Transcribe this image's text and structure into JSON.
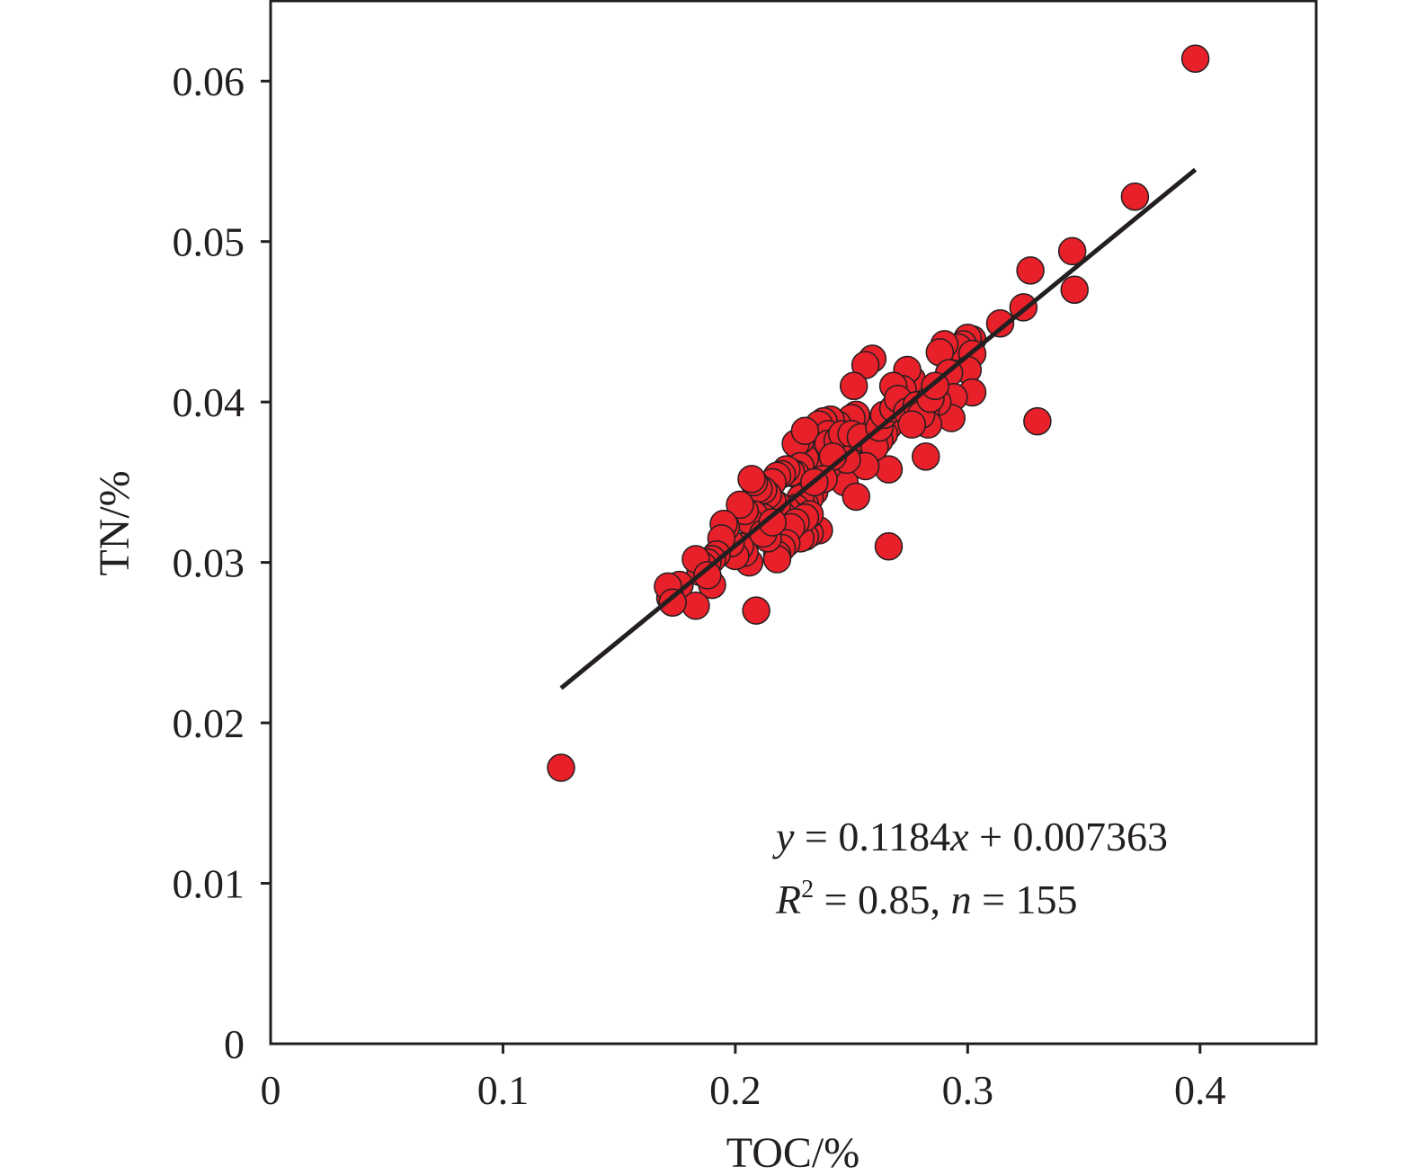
{
  "chart_data": {
    "type": "scatter",
    "title": "",
    "xlabel": "TOC/%",
    "ylabel": "TN/%",
    "xlim": [
      0,
      0.45
    ],
    "ylim": [
      0,
      0.065
    ],
    "x_ticks": [
      0,
      0.1,
      0.2,
      0.3,
      0.4
    ],
    "x_tick_labels": [
      "0",
      "0.1",
      "0.2",
      "0.3",
      "0.4"
    ],
    "y_ticks": [
      0,
      0.01,
      0.02,
      0.03,
      0.04,
      0.05,
      0.06
    ],
    "y_tick_labels": [
      "0",
      "0.01",
      "0.02",
      "0.03",
      "0.04",
      "0.05",
      "0.06"
    ],
    "grid": false,
    "legend": "none",
    "colors": {
      "marker": "#e8202a",
      "marker_edge": "#231f20",
      "fit_line": "#231f20",
      "axis": "#231f20"
    },
    "fit_line": {
      "slope": 0.1184,
      "intercept": 0.007363,
      "x_range": [
        0.125,
        0.398
      ]
    },
    "annotation": {
      "eq_y": "y",
      "eq_rest": " = 0.1184",
      "eq_x": "x",
      "eq_tail": " + 0.007363",
      "r_letter": "R",
      "r_sup": "2",
      "r_rest": " = 0.85, ",
      "n_letter": "n",
      "n_rest": " = 155"
    },
    "points": [
      [
        0.398,
        0.0614
      ],
      [
        0.372,
        0.0528
      ],
      [
        0.345,
        0.0494
      ],
      [
        0.346,
        0.047
      ],
      [
        0.327,
        0.0482
      ],
      [
        0.324,
        0.0459
      ],
      [
        0.314,
        0.0449
      ],
      [
        0.33,
        0.0388
      ],
      [
        0.302,
        0.0439
      ],
      [
        0.3,
        0.044
      ],
      [
        0.298,
        0.0436
      ],
      [
        0.296,
        0.0434
      ],
      [
        0.29,
        0.0436
      ],
      [
        0.288,
        0.0431
      ],
      [
        0.302,
        0.043
      ],
      [
        0.3,
        0.042
      ],
      [
        0.292,
        0.0418
      ],
      [
        0.302,
        0.0406
      ],
      [
        0.294,
        0.0403
      ],
      [
        0.293,
        0.039
      ],
      [
        0.287,
        0.04
      ],
      [
        0.282,
        0.0395
      ],
      [
        0.283,
        0.0386
      ],
      [
        0.282,
        0.0366
      ],
      [
        0.278,
        0.0405
      ],
      [
        0.276,
        0.0414
      ],
      [
        0.274,
        0.042
      ],
      [
        0.272,
        0.0408
      ],
      [
        0.27,
        0.04
      ],
      [
        0.268,
        0.041
      ],
      [
        0.272,
        0.0395
      ],
      [
        0.269,
        0.039
      ],
      [
        0.266,
        0.0385
      ],
      [
        0.264,
        0.038
      ],
      [
        0.262,
        0.0376
      ],
      [
        0.266,
        0.0358
      ],
      [
        0.266,
        0.031
      ],
      [
        0.259,
        0.0427
      ],
      [
        0.256,
        0.0423
      ],
      [
        0.251,
        0.041
      ],
      [
        0.258,
        0.0385
      ],
      [
        0.255,
        0.0383
      ],
      [
        0.252,
        0.0392
      ],
      [
        0.25,
        0.039
      ],
      [
        0.256,
        0.037
      ],
      [
        0.253,
        0.0366
      ],
      [
        0.25,
        0.0374
      ],
      [
        0.248,
        0.037
      ],
      [
        0.246,
        0.0368
      ],
      [
        0.247,
        0.036
      ],
      [
        0.245,
        0.0355
      ],
      [
        0.247,
        0.035
      ],
      [
        0.252,
        0.0341
      ],
      [
        0.244,
        0.0386
      ],
      [
        0.241,
        0.0389
      ],
      [
        0.238,
        0.0388
      ],
      [
        0.236,
        0.0386
      ],
      [
        0.24,
        0.038
      ],
      [
        0.238,
        0.0372
      ],
      [
        0.236,
        0.037
      ],
      [
        0.234,
        0.0366
      ],
      [
        0.24,
        0.036
      ],
      [
        0.236,
        0.0358
      ],
      [
        0.232,
        0.0362
      ],
      [
        0.23,
        0.0365
      ],
      [
        0.228,
        0.0376
      ],
      [
        0.226,
        0.0374
      ],
      [
        0.23,
        0.0382
      ],
      [
        0.228,
        0.036
      ],
      [
        0.226,
        0.0355
      ],
      [
        0.224,
        0.0356
      ],
      [
        0.222,
        0.0358
      ],
      [
        0.22,
        0.0355
      ],
      [
        0.218,
        0.0354
      ],
      [
        0.216,
        0.035
      ],
      [
        0.234,
        0.0344
      ],
      [
        0.232,
        0.034
      ],
      [
        0.23,
        0.0336
      ],
      [
        0.228,
        0.034
      ],
      [
        0.226,
        0.0334
      ],
      [
        0.224,
        0.033
      ],
      [
        0.222,
        0.0333
      ],
      [
        0.22,
        0.033
      ],
      [
        0.218,
        0.0336
      ],
      [
        0.216,
        0.0338
      ],
      [
        0.214,
        0.0342
      ],
      [
        0.212,
        0.0345
      ],
      [
        0.21,
        0.0346
      ],
      [
        0.208,
        0.035
      ],
      [
        0.207,
        0.0352
      ],
      [
        0.236,
        0.032
      ],
      [
        0.232,
        0.0318
      ],
      [
        0.23,
        0.0316
      ],
      [
        0.228,
        0.0315
      ],
      [
        0.232,
        0.033
      ],
      [
        0.23,
        0.0328
      ],
      [
        0.226,
        0.0325
      ],
      [
        0.224,
        0.0322
      ],
      [
        0.222,
        0.0312
      ],
      [
        0.22,
        0.0309
      ],
      [
        0.218,
        0.0305
      ],
      [
        0.218,
        0.0302
      ],
      [
        0.214,
        0.0315
      ],
      [
        0.212,
        0.0328
      ],
      [
        0.21,
        0.0325
      ],
      [
        0.208,
        0.033
      ],
      [
        0.206,
        0.0326
      ],
      [
        0.204,
        0.0332
      ],
      [
        0.202,
        0.0336
      ],
      [
        0.206,
        0.03
      ],
      [
        0.204,
        0.0306
      ],
      [
        0.202,
        0.031
      ],
      [
        0.2,
        0.0304
      ],
      [
        0.198,
        0.0312
      ],
      [
        0.196,
        0.0322
      ],
      [
        0.195,
        0.0324
      ],
      [
        0.194,
        0.0315
      ],
      [
        0.192,
        0.0305
      ],
      [
        0.19,
        0.0302
      ],
      [
        0.188,
        0.03
      ],
      [
        0.186,
        0.0298
      ],
      [
        0.185,
        0.0294
      ],
      [
        0.183,
        0.0302
      ],
      [
        0.19,
        0.0286
      ],
      [
        0.188,
        0.0292
      ],
      [
        0.176,
        0.0286
      ],
      [
        0.172,
        0.0278
      ],
      [
        0.183,
        0.0273
      ],
      [
        0.171,
        0.0285
      ],
      [
        0.173,
        0.0275
      ],
      [
        0.209,
        0.027
      ],
      [
        0.125,
        0.0172
      ],
      [
        0.24,
        0.0374
      ],
      [
        0.244,
        0.0376
      ],
      [
        0.246,
        0.038
      ],
      [
        0.25,
        0.038
      ],
      [
        0.254,
        0.0378
      ],
      [
        0.26,
        0.0372
      ],
      [
        0.262,
        0.0384
      ],
      [
        0.264,
        0.0392
      ],
      [
        0.268,
        0.0396
      ],
      [
        0.27,
        0.0402
      ],
      [
        0.274,
        0.0394
      ],
      [
        0.278,
        0.0398
      ],
      [
        0.28,
        0.0392
      ],
      [
        0.284,
        0.0402
      ],
      [
        0.286,
        0.041
      ],
      [
        0.276,
        0.0386
      ],
      [
        0.256,
        0.036
      ],
      [
        0.248,
        0.0364
      ],
      [
        0.242,
        0.0366
      ],
      [
        0.238,
        0.0352
      ],
      [
        0.234,
        0.035
      ],
      [
        0.212,
        0.0318
      ],
      [
        0.216,
        0.0325
      ]
    ]
  }
}
